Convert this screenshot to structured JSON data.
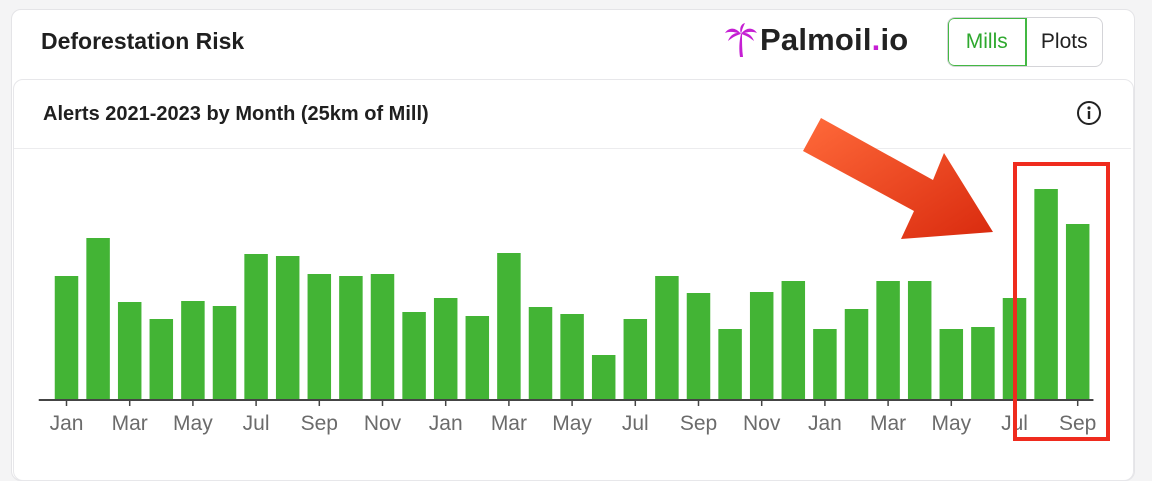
{
  "header": {
    "title": "Deforestation Risk",
    "logo_text": "Palmoil",
    "logo_dot": ".",
    "logo_suffix": "io",
    "toggle": {
      "mills_label": "Mills",
      "plots_label": "Plots",
      "active": "Mills"
    }
  },
  "card": {
    "chart_title": "Alerts 2021-2023 by Month (25km of Mill)",
    "info_icon": "info-icon"
  },
  "colors": {
    "bar": "#43b435",
    "accent": "#2ea82e",
    "logo_magenta": "#c51fd3",
    "highlight_box": "#ef2b1e",
    "arrow": "#ea3a16"
  },
  "annotation": {
    "arrow": "arrow-icon",
    "highlight": "highlight-box"
  },
  "chart_data": {
    "type": "bar",
    "categories": [
      "Jan",
      "Feb",
      "Mar",
      "Apr",
      "May",
      "Jun",
      "Jul",
      "Aug",
      "Sep",
      "Oct",
      "Nov",
      "Dec",
      "Jan",
      "Feb",
      "Mar",
      "Apr",
      "May",
      "Jun",
      "Jul",
      "Aug",
      "Sep",
      "Oct",
      "Nov",
      "Dec",
      "Jan",
      "Feb",
      "Mar",
      "Apr",
      "May",
      "Jun",
      "Jul",
      "Aug",
      "Sep"
    ],
    "tick_labels": [
      "Jan",
      "Mar",
      "May",
      "Jul",
      "Sep",
      "Nov",
      "Jan",
      "Mar",
      "May",
      "Jul",
      "Sep",
      "Nov",
      "Jan",
      "Mar",
      "May",
      "Jul",
      "Sep"
    ],
    "values": [
      124,
      162,
      98,
      81,
      99,
      94,
      146,
      144,
      126,
      124,
      126,
      88,
      102,
      84,
      147,
      93,
      86,
      45,
      81,
      124,
      107,
      71,
      108,
      119,
      71,
      91,
      119,
      119,
      71,
      73,
      102,
      211,
      176
    ],
    "ylim": [
      0,
      240
    ],
    "title": "Alerts 2021-2023 by Month (25km of Mill)",
    "xlabel": "",
    "ylabel": "",
    "grid": false,
    "highlighted_categories": [
      "Aug",
      "Sep"
    ]
  }
}
